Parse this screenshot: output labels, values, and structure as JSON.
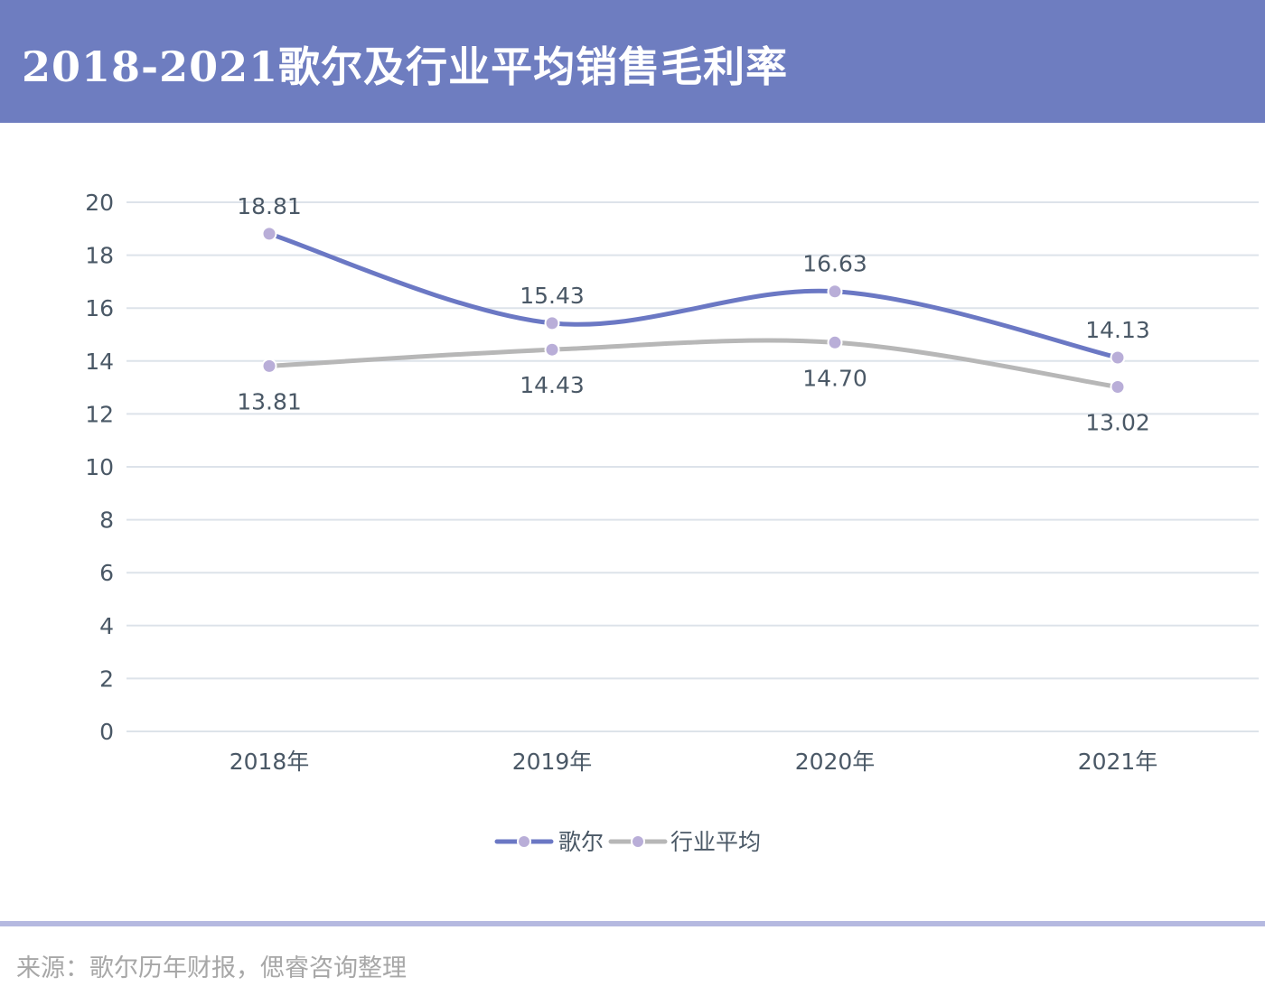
{
  "header": {
    "title": "2018-2021歌尔及行业平均销售毛利率"
  },
  "source": "来源：歌尔历年财报，偲睿咨询整理",
  "colors": {
    "header_bg": "#6e7dc0",
    "series_goertek": "#6b78c4",
    "series_industry": "#b7b7b7",
    "marker": "#b9aed8",
    "grid": "#dde3ea",
    "text": "#4a5866"
  },
  "chart_data": {
    "type": "line",
    "title": "",
    "xlabel": "",
    "ylabel": "",
    "categories": [
      "2018年",
      "2019年",
      "2020年",
      "2021年"
    ],
    "ylim": [
      0,
      20
    ],
    "yticks": [
      "0",
      "2",
      "4",
      "6",
      "8",
      "10",
      "12",
      "14",
      "16",
      "18",
      "20"
    ],
    "grid": true,
    "legend_position": "bottom-center",
    "series": [
      {
        "name": "歌尔",
        "values": [
          18.81,
          15.43,
          16.63,
          14.13
        ],
        "labels": [
          "18.81",
          "15.43",
          "16.63",
          "14.13"
        ],
        "label_position": "above"
      },
      {
        "name": "行业平均",
        "values": [
          13.81,
          14.43,
          14.7,
          13.02
        ],
        "labels": [
          "13.81",
          "14.43",
          "14.70",
          "13.02"
        ],
        "label_position": "below"
      }
    ]
  }
}
